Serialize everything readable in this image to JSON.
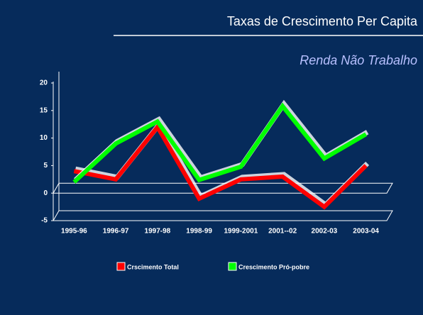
{
  "chart_data": {
    "type": "line",
    "title": "Taxas de Crescimento Per Capita",
    "subtitle": "Renda Não Trabalho",
    "categories": [
      "1995-96",
      "1996-97",
      "1997-98",
      "1998-99",
      "1999-2001",
      "2001--02",
      "2002-03",
      "2003-04"
    ],
    "series": [
      {
        "name": "Crscimento Total",
        "color": "#ff0000",
        "values": [
          4,
          2.5,
          12,
          -1,
          2.5,
          3,
          -2.5,
          5
        ]
      },
      {
        "name": "Crescimento Pró-pobre",
        "color": "#00ff00",
        "values": [
          2,
          9,
          13,
          2.4,
          4.8,
          15.8,
          6.3,
          10.7
        ]
      }
    ],
    "ylim": [
      -5,
      20
    ],
    "yticks": [
      -5,
      0,
      5,
      10,
      15,
      20
    ]
  }
}
